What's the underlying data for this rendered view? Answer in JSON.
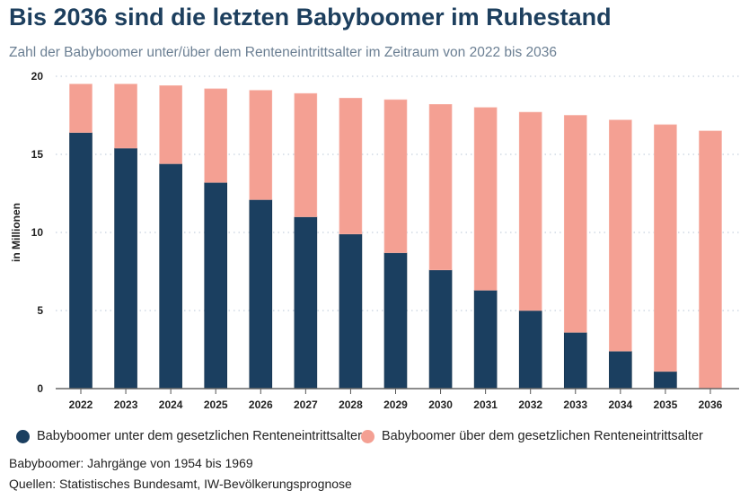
{
  "title": "Bis 2036 sind die letzten Babyboomer im Ruhestand",
  "subtitle": "Zahl der Babyboomer unter/über dem Renteneintrittsalter im Zeitraum von 2022 bis 2036",
  "note": "Babyboomer: Jahrgänge von 1954 bis 1969",
  "sources": "Quellen: Statistisches Bundesamt, IW-Bevölkerungsprognose",
  "colors": {
    "under": "#1b3f60",
    "over": "#f4a093",
    "title": "#1d3f5e"
  },
  "chart_data": {
    "type": "bar",
    "stacked": true,
    "title": "Bis 2036 sind die letzten Babyboomer im Ruhestand",
    "subtitle": "Zahl der Babyboomer unter/über dem Renteneintrittsalter im Zeitraum von 2022 bis 2036",
    "xlabel": "",
    "ylabel": "in Millionen",
    "ylim": [
      0,
      20
    ],
    "yticks": [
      0,
      5,
      10,
      15,
      20
    ],
    "grid": "horizontal dotted",
    "legend_position": "bottom",
    "categories": [
      "2022",
      "2023",
      "2024",
      "2025",
      "2026",
      "2027",
      "2028",
      "2029",
      "2030",
      "2031",
      "2032",
      "2033",
      "2034",
      "2035",
      "2036"
    ],
    "series": [
      {
        "name": "Babyboomer unter dem gesetzlichen Renteneintrittsalter",
        "color": "#1b3f60",
        "values": [
          16.4,
          15.4,
          14.4,
          13.2,
          12.1,
          11.0,
          9.9,
          8.7,
          7.6,
          6.3,
          5.0,
          3.6,
          2.4,
          1.1,
          0
        ]
      },
      {
        "name": "Babyboomer über dem gesetzlichen Renteneintrittsalter",
        "color": "#f4a093",
        "values": [
          3.1,
          4.1,
          5.0,
          6.0,
          7.0,
          7.9,
          8.7,
          9.8,
          10.6,
          11.7,
          12.7,
          13.9,
          14.8,
          15.8,
          16.5
        ]
      }
    ]
  }
}
